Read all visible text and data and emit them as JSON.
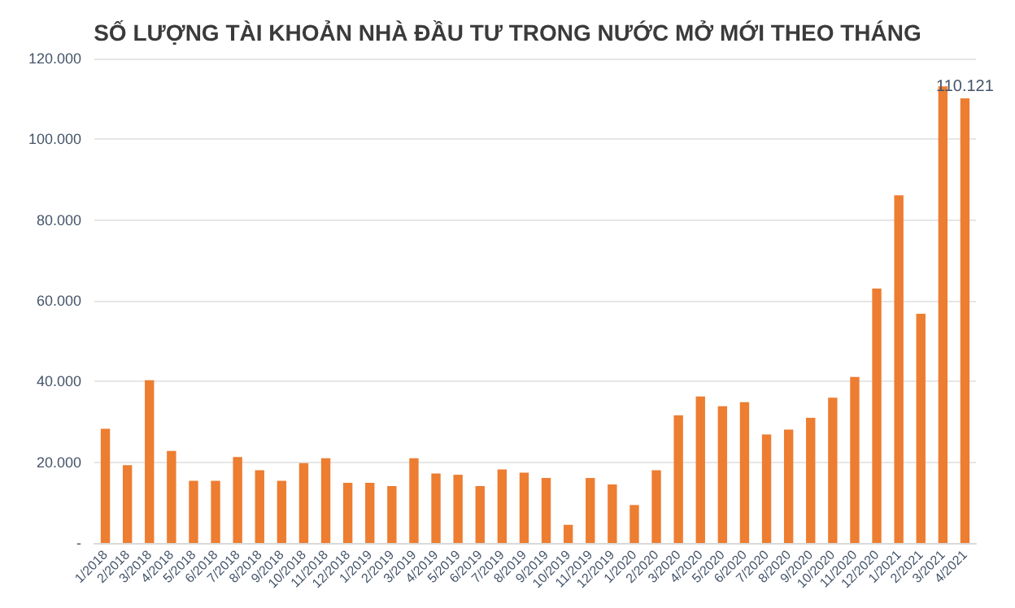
{
  "chart_data": {
    "type": "bar",
    "title": "SỐ LƯỢNG TÀI KHOẢN NHÀ ĐẦU TƯ TRONG NƯỚC MỞ MỚI THEO THÁNG",
    "categories": [
      "1/2018",
      "2/2018",
      "3/2018",
      "4/2018",
      "5/2018",
      "6/2018",
      "7/2018",
      "8/2018",
      "9/2018",
      "10/2018",
      "11/2018",
      "12/2018",
      "1/2019",
      "2/2019",
      "3/2019",
      "4/2019",
      "5/2019",
      "6/2019",
      "7/2019",
      "8/2019",
      "9/2019",
      "10/2019",
      "11/2019",
      "12/2019",
      "1/2020",
      "2/2020",
      "3/2020",
      "4/2020",
      "5/2020",
      "6/2020",
      "7/2020",
      "8/2020",
      "9/2020",
      "10/2020",
      "11/2020",
      "12/2020",
      "1/2021",
      "2/2021",
      "3/2021",
      "4/2021"
    ],
    "values": [
      28300,
      19300,
      40300,
      22800,
      15400,
      15400,
      21300,
      18000,
      15400,
      19800,
      21000,
      14900,
      14900,
      14100,
      21000,
      17200,
      16900,
      14100,
      18200,
      17400,
      16100,
      4500,
      16100,
      14500,
      9400,
      18000,
      31600,
      36300,
      33900,
      34900,
      26900,
      28100,
      31000,
      36000,
      41100,
      63000,
      86100,
      56800,
      113100,
      110121
    ],
    "value_labels": [
      null,
      null,
      null,
      null,
      null,
      null,
      null,
      null,
      null,
      null,
      null,
      null,
      null,
      null,
      null,
      null,
      null,
      null,
      null,
      null,
      null,
      null,
      null,
      null,
      null,
      null,
      null,
      null,
      null,
      null,
      null,
      null,
      null,
      null,
      null,
      null,
      null,
      null,
      null,
      "110.121"
    ],
    "color": "#ed7d31",
    "ylim": [
      0,
      120000
    ],
    "yticks": [
      {
        "value": 0,
        "label": "-"
      },
      {
        "value": 20000,
        "label": "20.000"
      },
      {
        "value": 40000,
        "label": "40.000"
      },
      {
        "value": 60000,
        "label": "60.000"
      },
      {
        "value": 80000,
        "label": "80.000"
      },
      {
        "value": 100000,
        "label": "100.000"
      },
      {
        "value": 120000,
        "label": "120.000"
      }
    ],
    "grid": "y"
  }
}
